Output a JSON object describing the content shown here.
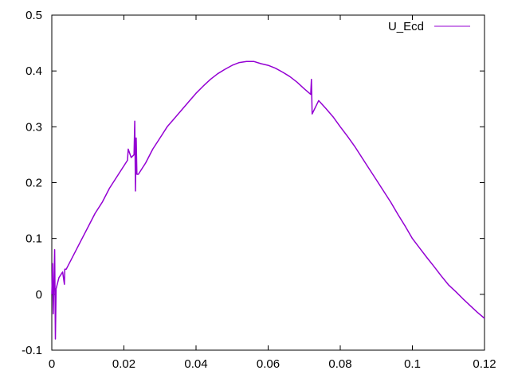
{
  "chart_data": {
    "type": "line",
    "title": "",
    "xlabel": "",
    "ylabel": "",
    "xlim": [
      0,
      0.12
    ],
    "ylim": [
      -0.1,
      0.5
    ],
    "xticks": [
      "0",
      "0.02",
      "0.04",
      "0.06",
      "0.08",
      "0.1",
      "0.12"
    ],
    "xtick_values": [
      0,
      0.02,
      0.04,
      0.06,
      0.08,
      0.1,
      0.12
    ],
    "yticks": [
      "-0.1",
      "0",
      "0.1",
      "0.2",
      "0.3",
      "0.4",
      "0.5"
    ],
    "ytick_values": [
      -0.1,
      0,
      0.1,
      0.2,
      0.3,
      0.4,
      0.5
    ],
    "grid": false,
    "legend_position": "top-right",
    "series": [
      {
        "name": "U_Ecd",
        "color": "#9400D3",
        "x": [
          0,
          0.0002,
          0.0004,
          0.0006,
          0.0008,
          0.001,
          0.0012,
          0.002,
          0.003,
          0.0035,
          0.0036,
          0.004,
          0.006,
          0.008,
          0.01,
          0.012,
          0.014,
          0.016,
          0.018,
          0.02,
          0.021,
          0.0212,
          0.022,
          0.0228,
          0.023,
          0.0232,
          0.0234,
          0.0236,
          0.024,
          0.026,
          0.028,
          0.03,
          0.032,
          0.034,
          0.036,
          0.038,
          0.04,
          0.042,
          0.044,
          0.046,
          0.048,
          0.05,
          0.052,
          0.054,
          0.056,
          0.058,
          0.06,
          0.062,
          0.064,
          0.066,
          0.068,
          0.07,
          0.0718,
          0.072,
          0.0722,
          0.074,
          0.076,
          0.078,
          0.08,
          0.082,
          0.084,
          0.086,
          0.088,
          0.09,
          0.092,
          0.094,
          0.096,
          0.098,
          0.1,
          0.102,
          0.104,
          0.106,
          0.108,
          0.11,
          0.112,
          0.114,
          0.116,
          0.118,
          0.12
        ],
        "y": [
          0.0,
          0.055,
          -0.035,
          0.02,
          0.08,
          -0.08,
          0.01,
          0.03,
          0.04,
          0.018,
          0.045,
          0.045,
          0.07,
          0.095,
          0.12,
          0.145,
          0.165,
          0.19,
          0.21,
          0.23,
          0.24,
          0.26,
          0.245,
          0.25,
          0.31,
          0.185,
          0.28,
          0.215,
          0.215,
          0.235,
          0.26,
          0.28,
          0.3,
          0.315,
          0.33,
          0.345,
          0.36,
          0.373,
          0.385,
          0.395,
          0.403,
          0.41,
          0.415,
          0.417,
          0.417,
          0.413,
          0.41,
          0.405,
          0.398,
          0.39,
          0.38,
          0.368,
          0.358,
          0.385,
          0.323,
          0.347,
          0.333,
          0.318,
          0.3,
          0.283,
          0.265,
          0.245,
          0.225,
          0.205,
          0.185,
          0.165,
          0.143,
          0.122,
          0.1,
          0.083,
          0.066,
          0.05,
          0.033,
          0.017,
          0.005,
          -0.008,
          -0.02,
          -0.032,
          -0.043
        ]
      }
    ]
  }
}
